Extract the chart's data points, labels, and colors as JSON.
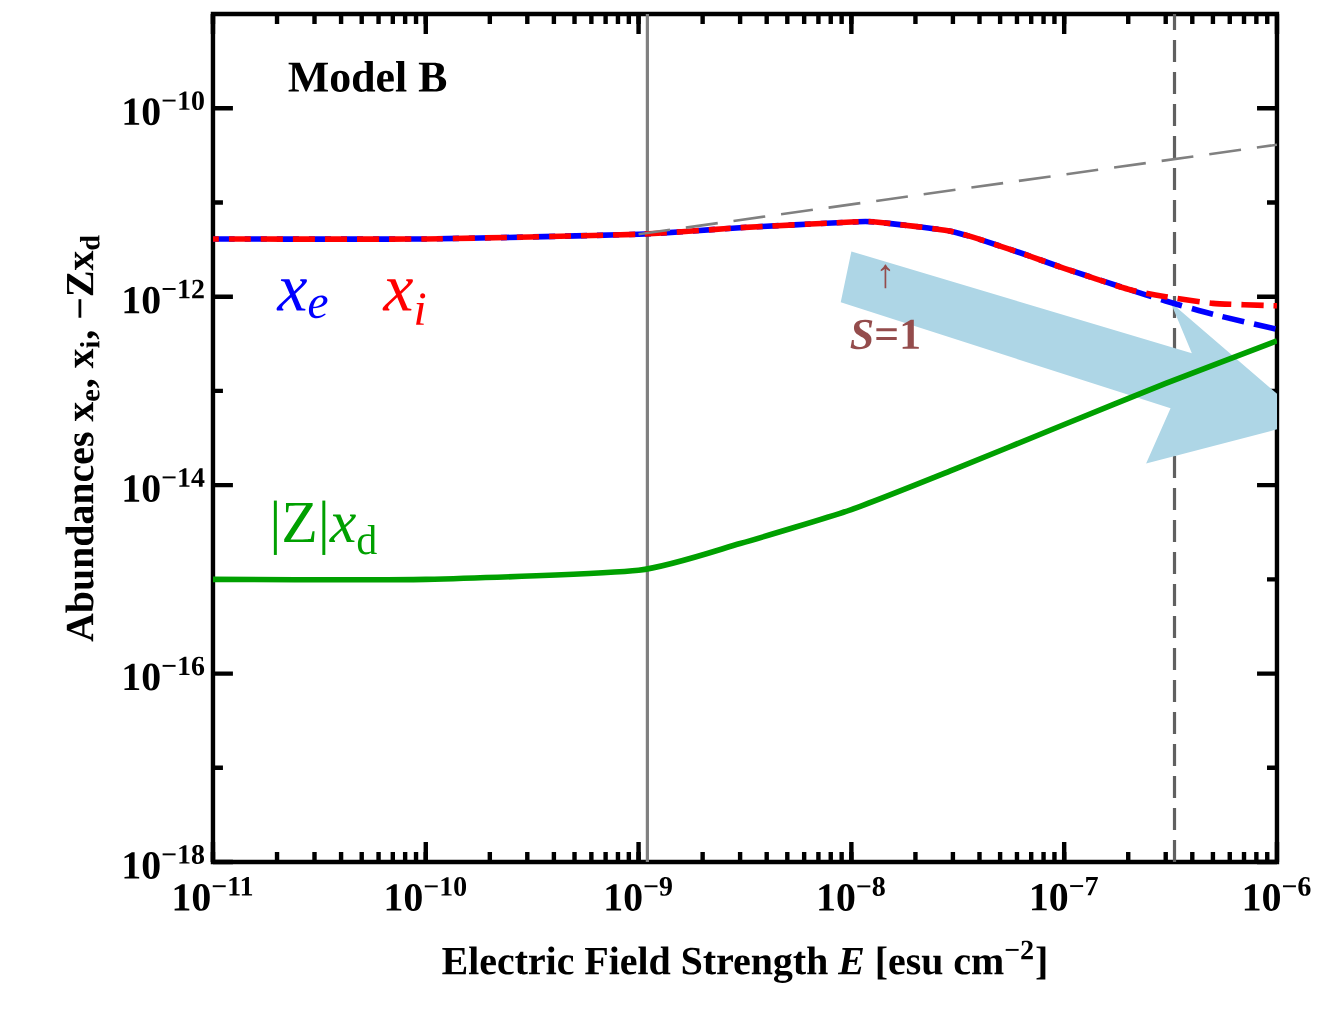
{
  "chart_data": {
    "type": "line",
    "log": "xy",
    "xlabel": "Electric Field Strength  *E*  [esu cm$^{−2}$]",
    "ylabel": "Abundances  x$_{e}$,  x$_{i}$,  −Zx$_{d}$",
    "xlim": [
      1e-11,
      1e-06
    ],
    "ylim": [
      1e-18,
      1e-09
    ],
    "xticks": [
      {
        "value": 1e-11,
        "label": "10$^{−11}$"
      },
      {
        "value": 1e-10,
        "label": "10$^{−10}$"
      },
      {
        "value": 1e-09,
        "label": "10$^{−9}$"
      },
      {
        "value": 1e-08,
        "label": "10$^{−8}$"
      },
      {
        "value": 1e-07,
        "label": "10$^{−7}$"
      },
      {
        "value": 1e-06,
        "label": "10$^{−6}$"
      }
    ],
    "yticks": [
      {
        "value": 1e-18,
        "label": "10$^{−18}$"
      },
      {
        "value": 1e-16,
        "label": "10$^{−16}$"
      },
      {
        "value": 1e-14,
        "label": "10$^{−14}$"
      },
      {
        "value": 1e-12,
        "label": "10$^{−12}$"
      },
      {
        "value": 1e-10,
        "label": "10$^{−10}$"
      }
    ],
    "grid": false,
    "line_style": "dashed",
    "series": [
      {
        "name": "x$_{e}$",
        "color": "#0000ff",
        "x": [
          1e-11,
          1e-10,
          1e-09,
          3e-09,
          1e-08,
          1.3e-08,
          3e-08,
          6e-08,
          1e-07,
          2e-07,
          3e-07,
          5e-07,
          1e-06
        ],
        "values": [
          4.1e-12,
          4.1e-12,
          4.6e-12,
          5.4e-12,
          6.2e-12,
          6.2e-12,
          4.9e-12,
          3e-12,
          2e-12,
          1.2e-12,
          9e-13,
          6.5e-13,
          4.5e-13
        ]
      },
      {
        "name": "x$_{i}$",
        "color": "#ff0000",
        "x": [
          1e-11,
          1e-10,
          1e-09,
          3e-09,
          1e-08,
          1.3e-08,
          3e-08,
          6e-08,
          1e-07,
          2e-07,
          3e-07,
          5e-07,
          1e-06
        ],
        "values": [
          4.1e-12,
          4.1e-12,
          4.6e-12,
          5.4e-12,
          6.2e-12,
          6.2e-12,
          4.9e-12,
          3e-12,
          2e-12,
          1.2e-12,
          1e-12,
          8.5e-13,
          8e-13
        ]
      },
      {
        "name": "|Z|*x*$_{d}$",
        "color": "#00a000",
        "line_style": "solid",
        "x": [
          1e-11,
          1e-10,
          1e-09,
          3e-09,
          1e-08,
          3e-08,
          1e-07,
          3e-07,
          1e-06
        ],
        "values": [
          1e-15,
          1e-15,
          1.25e-15,
          2.4e-15,
          5.5e-15,
          1.45e-14,
          4.4e-14,
          1.2e-13,
          3.4e-13
        ]
      },
      {
        "color": "#808080",
        "line_style": "dashed",
        "x": [
          1e-09,
          1e-06
        ],
        "values": [
          4.6e-12,
          4.1e-11
        ]
      }
    ],
    "ref_lines": [
      {
        "axis": "x",
        "value": 1.1e-09,
        "color": "#808080",
        "line_style": "solid"
      },
      {
        "axis": "x",
        "value": 3.3e-07,
        "color": "#606060",
        "line_style": "dashed"
      }
    ],
    "annotations": [
      "**Model B**",
      "↑",
      "*S*=1"
    ]
  }
}
